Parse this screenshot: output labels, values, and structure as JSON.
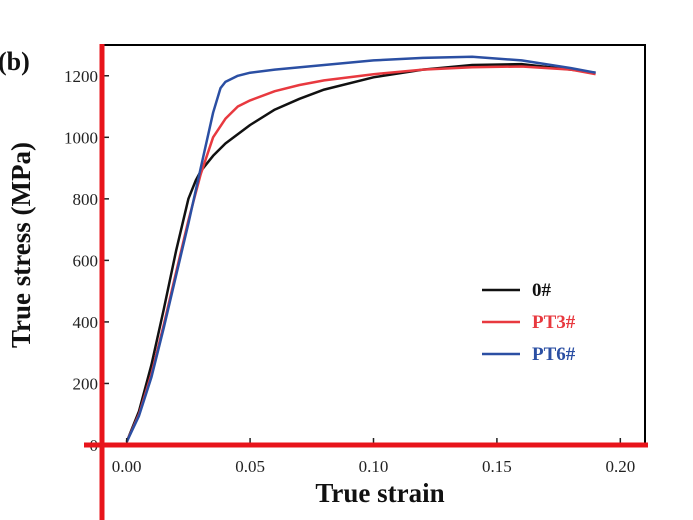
{
  "chart_data": {
    "type": "line",
    "panel_label": "(b)",
    "xlabel": "True strain",
    "ylabel": "True stress (MPa)",
    "xlim": [
      -0.01,
      0.21
    ],
    "ylim": [
      0,
      1300
    ],
    "x_ticks": [
      0.0,
      0.05,
      0.1,
      0.15,
      0.2
    ],
    "x_tick_labels": [
      "0.00",
      "0.05",
      "0.10",
      "0.15",
      "0.20"
    ],
    "y_ticks": [
      0,
      200,
      400,
      600,
      800,
      1000,
      1200
    ],
    "y_tick_labels": [
      "0",
      "200",
      "400",
      "600",
      "800",
      "1000",
      "1200"
    ],
    "grid": false,
    "legend_position": "right",
    "colors": {
      "left_spine": "#e8141b",
      "bottom_spine": "#e8141b",
      "frame": "#000000"
    },
    "series": [
      {
        "name": "0#",
        "color": "#111111",
        "x": [
          0.0,
          0.005,
          0.01,
          0.015,
          0.02,
          0.025,
          0.028,
          0.03,
          0.035,
          0.04,
          0.05,
          0.06,
          0.07,
          0.08,
          0.1,
          0.12,
          0.14,
          0.16,
          0.18,
          0.19
        ],
        "y": [
          10,
          110,
          260,
          440,
          630,
          800,
          860,
          890,
          940,
          980,
          1040,
          1090,
          1125,
          1155,
          1195,
          1220,
          1235,
          1238,
          1220,
          1210
        ]
      },
      {
        "name": "PT3#",
        "color": "#e8393f",
        "x": [
          0.0,
          0.005,
          0.01,
          0.015,
          0.02,
          0.025,
          0.03,
          0.035,
          0.04,
          0.045,
          0.05,
          0.06,
          0.07,
          0.08,
          0.1,
          0.12,
          0.14,
          0.16,
          0.18,
          0.19
        ],
        "y": [
          10,
          100,
          230,
          390,
          560,
          730,
          880,
          1000,
          1060,
          1100,
          1120,
          1150,
          1170,
          1185,
          1205,
          1220,
          1228,
          1230,
          1220,
          1205
        ]
      },
      {
        "name": "PT6#",
        "color": "#2b4fa3",
        "x": [
          0.0,
          0.005,
          0.01,
          0.015,
          0.02,
          0.025,
          0.03,
          0.035,
          0.038,
          0.04,
          0.045,
          0.05,
          0.06,
          0.08,
          0.1,
          0.12,
          0.14,
          0.16,
          0.18,
          0.19
        ],
        "y": [
          10,
          95,
          220,
          380,
          550,
          720,
          900,
          1080,
          1160,
          1180,
          1200,
          1210,
          1220,
          1235,
          1250,
          1258,
          1262,
          1250,
          1225,
          1210
        ]
      }
    ]
  }
}
